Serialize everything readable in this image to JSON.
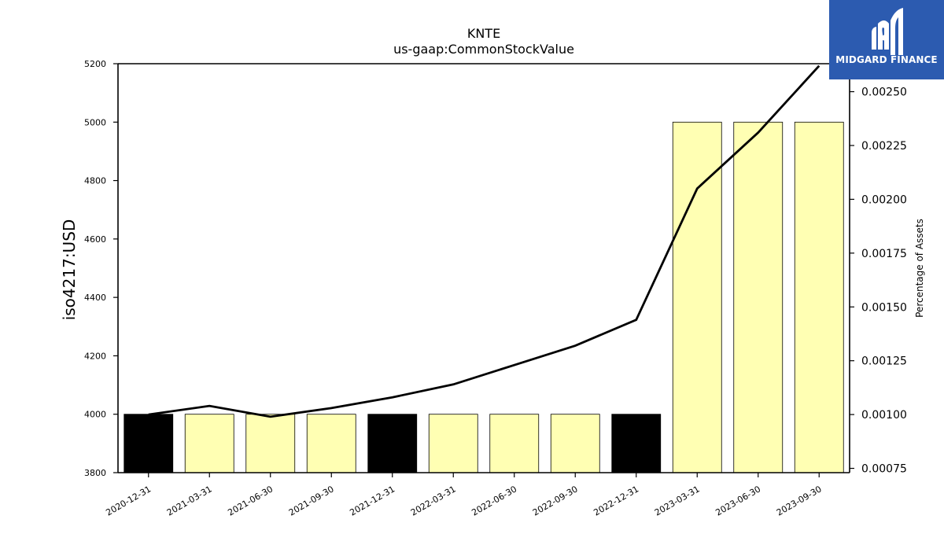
{
  "chart_data": {
    "type": "bar",
    "title": "KNTE",
    "subtitle": "us-gaap:CommonStockValue",
    "ylabel": "iso4217:USD",
    "y2label": "Percentage of Assets",
    "categories": [
      "2020-12-31",
      "2021-03-31",
      "2021-06-30",
      "2021-09-30",
      "2021-12-31",
      "2022-03-31",
      "2022-06-30",
      "2022-09-30",
      "2022-12-31",
      "2023-03-31",
      "2023-06-30",
      "2023-09-30"
    ],
    "values": [
      4000,
      4000,
      4000,
      4000,
      4000,
      4000,
      4000,
      4000,
      4000,
      5000,
      5000,
      5000
    ],
    "bar_colors": [
      "#000000",
      "#ffffb3",
      "#ffffb3",
      "#ffffb3",
      "#000000",
      "#ffffb3",
      "#ffffb3",
      "#ffffb3",
      "#000000",
      "#ffffb3",
      "#ffffb3",
      "#ffffb3"
    ],
    "line_values": [
      0.001,
      0.00104,
      0.00099,
      0.00103,
      0.00108,
      0.00114,
      0.00123,
      0.00132,
      0.00144,
      0.00205,
      0.00231,
      0.00262
    ],
    "ylim": [
      3800,
      5200
    ],
    "yticks": [
      "3800",
      "4000",
      "4200",
      "4400",
      "4600",
      "4800",
      "5000",
      "5200"
    ],
    "y2lim": [
      0.00073,
      0.00263
    ],
    "y2ticks": [
      "0.00075",
      "0.00100",
      "0.00125",
      "0.00150",
      "0.00175",
      "0.00200",
      "0.00225",
      "0.00250"
    ],
    "line_color": "#000000",
    "grid": false,
    "legend": "none"
  },
  "logo": {
    "text": "MIDGARD FINANCE",
    "background": "#2c5bb0"
  }
}
